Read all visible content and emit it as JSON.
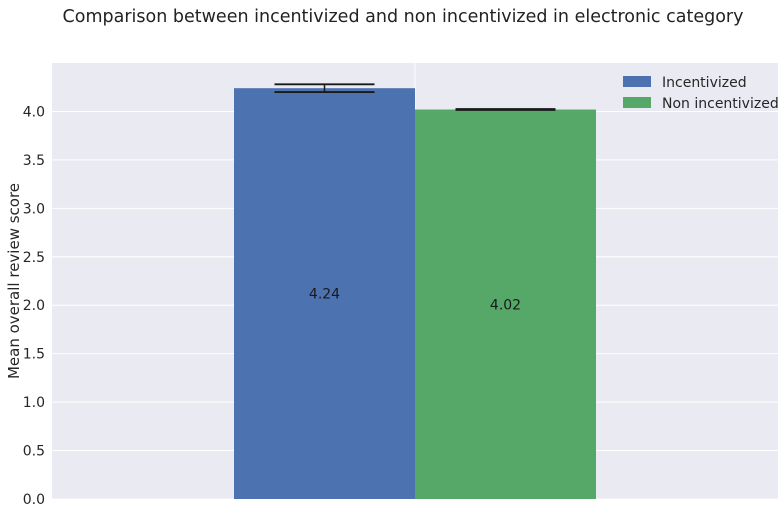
{
  "chart_data": {
    "type": "bar",
    "title": "Comparison between incentivized and non incentivized in electronic category",
    "xlabel": "",
    "ylabel": "Mean overall review score",
    "ylim": [
      0,
      4.5
    ],
    "yticks": [
      "0.0",
      "0.5",
      "1.0",
      "1.5",
      "2.0",
      "2.5",
      "3.0",
      "3.5",
      "4.0"
    ],
    "grid": true,
    "legend_position": "top-right",
    "series": [
      {
        "name": "Incentivized",
        "value": 4.24,
        "label": "4.24",
        "error": 0.04,
        "color": "#4c72b0"
      },
      {
        "name": "Non incentivized",
        "value": 4.02,
        "label": "4.02",
        "error": 0.005,
        "color": "#55a868"
      }
    ]
  }
}
